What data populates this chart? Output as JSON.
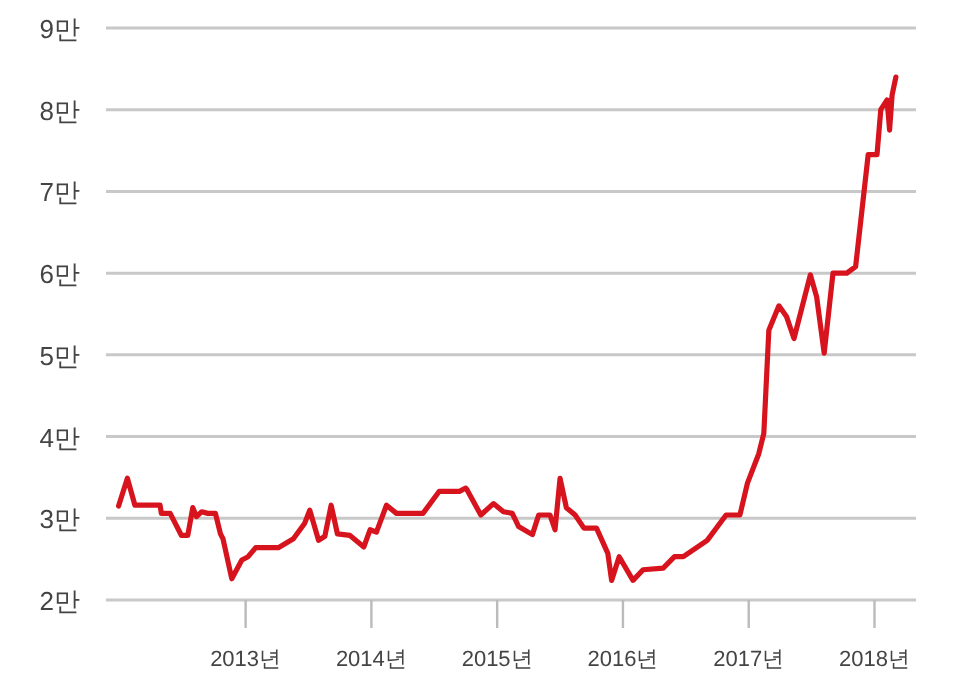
{
  "chart_data": {
    "type": "line",
    "x": [
      2011.99,
      2012.06,
      2012.12,
      2012.32,
      2012.33,
      2012.4,
      2012.49,
      2012.54,
      2012.58,
      2012.61,
      2012.65,
      2012.7,
      2012.76,
      2012.8,
      2012.82,
      2012.89,
      2012.97,
      2013.02,
      2013.08,
      2013.26,
      2013.38,
      2013.47,
      2013.51,
      2013.58,
      2013.63,
      2013.68,
      2013.73,
      2013.83,
      2013.94,
      2013.99,
      2014.04,
      2014.12,
      2014.2,
      2014.41,
      2014.54,
      2014.7,
      2014.75,
      2014.76,
      2014.87,
      2014.97,
      2015.05,
      2015.12,
      2015.17,
      2015.28,
      2015.33,
      2015.42,
      2015.46,
      2015.5,
      2015.55,
      2015.62,
      2015.69,
      2015.79,
      2015.88,
      2015.91,
      2015.97,
      2016.08,
      2016.16,
      2016.32,
      2016.41,
      2016.48,
      2016.67,
      2016.82,
      2016.93,
      2016.99,
      2017.08,
      2017.12,
      2017.16,
      2017.24,
      2017.3,
      2017.36,
      2017.49,
      2017.54,
      2017.6,
      2017.67,
      2017.78,
      2017.85,
      2017.95,
      2018.02,
      2018.05,
      2018.1,
      2018.12,
      2018.14,
      2018.17
    ],
    "values": [
      3.15,
      3.49,
      3.16,
      3.16,
      3.06,
      3.06,
      2.79,
      2.79,
      3.13,
      3.02,
      3.08,
      3.06,
      3.06,
      2.81,
      2.75,
      2.26,
      2.49,
      2.53,
      2.64,
      2.64,
      2.75,
      2.94,
      3.1,
      2.73,
      2.78,
      3.16,
      2.81,
      2.79,
      2.65,
      2.86,
      2.83,
      3.16,
      3.06,
      3.06,
      3.33,
      3.33,
      3.37,
      3.35,
      3.04,
      3.18,
      3.08,
      3.06,
      2.9,
      2.8,
      3.04,
      3.04,
      2.86,
      3.49,
      3.13,
      3.04,
      2.88,
      2.88,
      2.57,
      2.24,
      2.53,
      2.24,
      2.37,
      2.39,
      2.53,
      2.53,
      2.73,
      3.04,
      3.04,
      3.43,
      3.79,
      4.04,
      5.3,
      5.6,
      5.47,
      5.2,
      5.98,
      5.71,
      5.02,
      6.0,
      6.0,
      6.08,
      7.45,
      7.45,
      8.0,
      8.12,
      7.75,
      8.18,
      8.4
    ],
    "color": "#d7141e",
    "xlim": [
      2011.89,
      2018.33
    ],
    "xticks": [
      {
        "value": 2013,
        "label": "2013년"
      },
      {
        "value": 2014,
        "label": "2014년"
      },
      {
        "value": 2015,
        "label": "2015년"
      },
      {
        "value": 2016,
        "label": "2016년"
      },
      {
        "value": 2017,
        "label": "2017년"
      },
      {
        "value": 2018,
        "label": "2018년"
      }
    ],
    "ylim": [
      2,
      9
    ],
    "yticks": [
      {
        "value": 2,
        "label": "2만"
      },
      {
        "value": 3,
        "label": "3만"
      },
      {
        "value": 4,
        "label": "4만"
      },
      {
        "value": 5,
        "label": "5만"
      },
      {
        "value": 6,
        "label": "6만"
      },
      {
        "value": 7,
        "label": "7만"
      },
      {
        "value": 8,
        "label": "8만"
      },
      {
        "value": 9,
        "label": "9만"
      }
    ],
    "grid": "y",
    "line_style": "solid"
  }
}
